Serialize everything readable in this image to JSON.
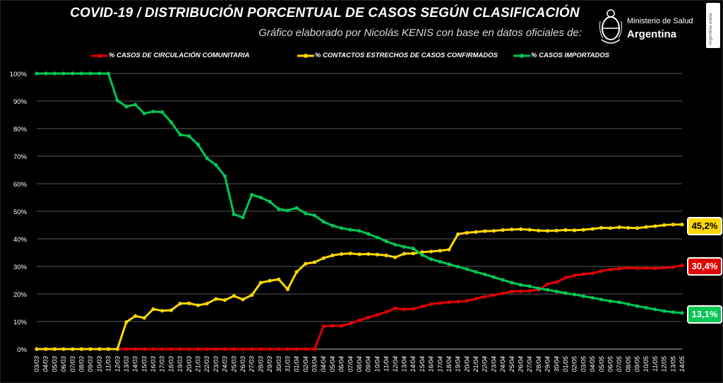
{
  "chart_data": {
    "type": "line",
    "title": "COVID-19  /  DISTRIBUCIÓN PORCENTUAL DE CASOS SEGÚN CLASIFICACIÓN",
    "subtitle": "Gráfico elaborado por Nicolás KENIS con base en datos oficiales de:",
    "ylim": [
      0,
      100
    ],
    "yticks": [
      0,
      10,
      20,
      30,
      40,
      50,
      60,
      70,
      80,
      90,
      100
    ],
    "ytick_labels": [
      "0%",
      "10%",
      "20%",
      "30%",
      "40%",
      "50%",
      "60%",
      "70%",
      "80%",
      "90%",
      "100%"
    ],
    "grid": true,
    "legend_position": "top",
    "x": [
      "03/03",
      "04/03",
      "05/03",
      "06/03",
      "07/03",
      "08/03",
      "09/03",
      "10/03",
      "11/03",
      "12/03",
      "13/03",
      "14/03",
      "15/03",
      "16/03",
      "17/03",
      "18/03",
      "19/03",
      "20/03",
      "21/03",
      "22/03",
      "23/03",
      "24/03",
      "25/03",
      "26/03",
      "27/03",
      "28/03",
      "29/03",
      "30/03",
      "31/03",
      "01/04",
      "02/04",
      "03/04",
      "04/04",
      "05/04",
      "06/04",
      "07/04",
      "08/04",
      "09/04",
      "10/04",
      "11/04",
      "12/04",
      "13/04",
      "14/04",
      "15/04",
      "16/04",
      "17/04",
      "18/04",
      "19/04",
      "20/04",
      "21/04",
      "22/04",
      "23/04",
      "24/04",
      "25/04",
      "26/04",
      "27/04",
      "28/04",
      "29/04",
      "30/04",
      "01/05",
      "02/05",
      "03/05",
      "04/05",
      "05/05",
      "06/05",
      "07/05",
      "08/05",
      "09/05",
      "10/05",
      "11/05",
      "12/05",
      "13/05",
      "14/05"
    ],
    "xtick_labels": [
      "03/03",
      "04/03",
      "05/03",
      "06/03",
      "07/03",
      "08/03",
      "09/03",
      "10/03",
      "11/03",
      "12/03",
      "13/03",
      "14/03",
      "15/03",
      "16/03",
      "17/03",
      "18/03",
      "19/03",
      "20/03",
      "21/03",
      "22/03",
      "23/03",
      "24/03",
      "25/03",
      "26/03",
      "27/03",
      "28/03",
      "29/03",
      "30/03",
      "31/03",
      "01/04",
      "02/04",
      "03/04",
      "04/04",
      "05/04",
      "06/04",
      "07/04",
      "08/04",
      "09/04",
      "10/04",
      "11/04",
      "12/04",
      "13/04",
      "14/04",
      "15/04",
      "16/04",
      "17/04",
      "18/04",
      "19/04",
      "20/04",
      "21/04",
      "22/04",
      "23/04",
      "24/04",
      "25/04",
      "26/04",
      "27/04",
      "28/04",
      "29/04",
      "30/04",
      "01/05",
      "02/05",
      "03/05",
      "04/05",
      "05/05",
      "06/05",
      "07/05",
      "08/05",
      "09/05",
      "10/05",
      "11/05",
      "12/05",
      "13/05",
      "14/05"
    ],
    "series": [
      {
        "name": "% CASOS DE CIRCULACIÓN COMUNITARIA",
        "color": "#e00000",
        "end_label": "30,4%",
        "values": [
          0,
          0,
          0,
          0,
          0,
          0,
          0,
          0,
          0,
          0,
          0,
          0,
          0,
          0,
          0,
          0,
          0,
          0,
          0,
          0,
          0,
          0,
          0,
          0,
          0,
          0,
          0,
          0,
          0,
          0,
          0,
          0,
          8.3,
          8.5,
          8.4,
          9.3,
          10.4,
          11.5,
          12.4,
          13.5,
          14.8,
          14.4,
          14.6,
          15.5,
          16.3,
          16.7,
          17.0,
          17.2,
          17.5,
          18.3,
          19.0,
          19.6,
          20.2,
          20.9,
          21.0,
          21.1,
          21.5,
          23.6,
          24.3,
          25.9,
          26.7,
          27.2,
          27.5,
          28.3,
          28.9,
          29.2,
          29.5,
          29.3,
          29.4,
          29.3,
          29.5,
          29.7,
          30.4
        ]
      },
      {
        "name": "% CONTACTOS ESTRECHOS DE CASOS CONFIRMADOS",
        "color": "#ffd700",
        "end_label": "45,2%",
        "values": [
          0,
          0,
          0,
          0,
          0,
          0,
          0,
          0,
          0,
          0,
          9.8,
          12.0,
          11.3,
          14.5,
          13.9,
          14.1,
          16.5,
          16.6,
          15.9,
          16.5,
          18.2,
          17.8,
          19.3,
          18.0,
          19.6,
          24.1,
          24.8,
          25.3,
          21.7,
          28.0,
          31.0,
          31.5,
          33.0,
          34.0,
          34.5,
          34.7,
          34.4,
          34.5,
          34.3,
          34.0,
          33.3,
          34.6,
          34.7,
          35.2,
          35.4,
          35.7,
          36.1,
          41.7,
          42.2,
          42.5,
          42.8,
          42.9,
          43.2,
          43.4,
          43.5,
          43.3,
          43.0,
          42.9,
          43.0,
          43.2,
          43.1,
          43.3,
          43.6,
          44.0,
          43.9,
          44.2,
          44.0,
          43.9,
          44.3,
          44.6,
          45.0,
          45.2,
          45.2
        ]
      },
      {
        "name": "% CASOS IMPORTADOS",
        "color": "#00c853",
        "end_label": "13,1%",
        "values": [
          100,
          100,
          100,
          100,
          100,
          100,
          100,
          100,
          100,
          90.2,
          88.0,
          88.7,
          85.5,
          86.2,
          86.0,
          82.3,
          77.8,
          77.3,
          74.2,
          69.2,
          66.8,
          62.7,
          48.9,
          47.8,
          56.0,
          55.0,
          53.5,
          50.8,
          50.3,
          51.2,
          49.2,
          48.5,
          46.2,
          44.8,
          43.9,
          43.3,
          42.9,
          41.8,
          40.5,
          39.1,
          37.9,
          37.1,
          36.5,
          34.2,
          32.6,
          31.7,
          30.8,
          29.9,
          29.0,
          28.0,
          27.1,
          26.1,
          25.1,
          24.1,
          23.3,
          22.8,
          22.0,
          21.5,
          20.9,
          20.3,
          19.8,
          19.2,
          18.6,
          18.0,
          17.4,
          17.0,
          16.3,
          15.6,
          15.0,
          14.4,
          13.8,
          13.4,
          13.1
        ]
      }
    ]
  },
  "header": {
    "title": "COVID-19  /  DISTRIBUCIÓN PORCENTUAL DE CASOS SEGÚN CLASIFICACIÓN",
    "subtitle": "Gráfico elaborado por Nicolás KENIS con base en datos oficiales de:"
  },
  "logo": {
    "line1": "Ministerio de Salud",
    "line2": "Argentina",
    "icon": "national-seal-icon"
  },
  "side_tag": {
    "text": "Argentina unida"
  }
}
